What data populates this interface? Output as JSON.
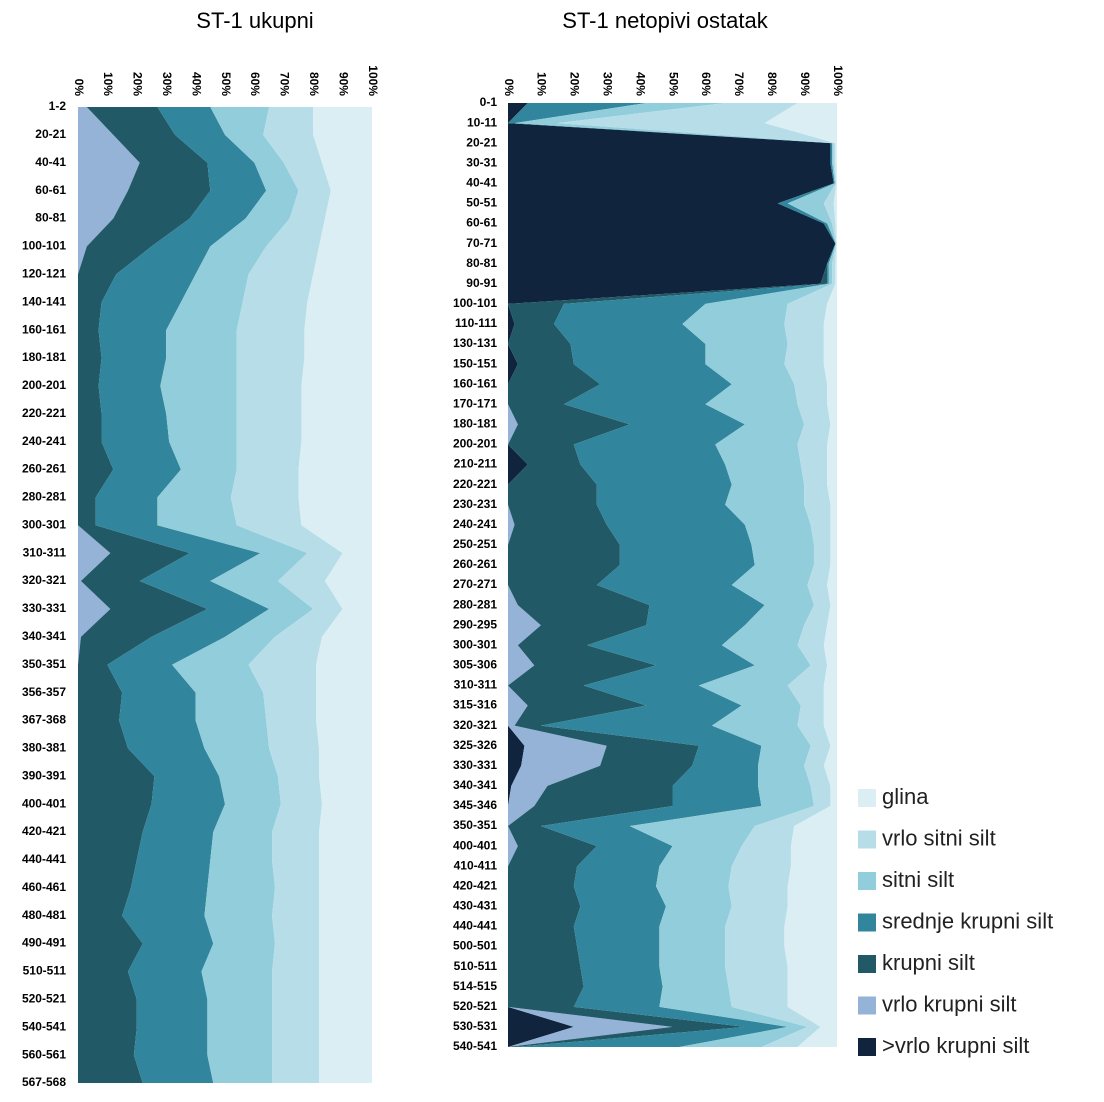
{
  "chart_data": [
    {
      "type": "stacked_area_horizontal",
      "title": "ST-1 ukupni",
      "categories": [
        "1-2",
        "20-21",
        "40-41",
        "60-61",
        "80-81",
        "100-101",
        "120-121",
        "140-141",
        "160-161",
        "180-181",
        "200-201",
        "220-221",
        "240-241",
        "260-261",
        "280-281",
        "300-301",
        "310-311",
        "320-321",
        "330-331",
        "340-341",
        "350-351",
        "356-357",
        "367-368",
        "380-381",
        "390-391",
        "400-401",
        "420-421",
        "440-441",
        "460-461",
        "480-481",
        "490-491",
        "510-511",
        "520-521",
        "540-541",
        "560-561",
        "567-568"
      ],
      "xlim": [
        0,
        100
      ],
      "xticks": [
        {
          "value": 0,
          "label": "0%"
        },
        {
          "value": 10,
          "label": "10%"
        },
        {
          "value": 20,
          "label": "20%"
        },
        {
          "value": 30,
          "label": "30%"
        },
        {
          "value": 40,
          "label": "40%"
        },
        {
          "value": 50,
          "label": "50%"
        },
        {
          "value": 60,
          "label": "60%"
        },
        {
          "value": 70,
          "label": "70%"
        },
        {
          "value": 80,
          "label": "80%"
        },
        {
          "value": 90,
          "label": "90%"
        },
        {
          "value": 100,
          "label": "100%"
        }
      ],
      "series": [
        {
          "color": "#95b3d7",
          "values": [
            3,
            12,
            21,
            17,
            12,
            3,
            0,
            0,
            0,
            0,
            0,
            0,
            0,
            0,
            0,
            0,
            11,
            1,
            11,
            1,
            0,
            0,
            0,
            0,
            0,
            0,
            0,
            0,
            0,
            0,
            0,
            0,
            0,
            0,
            0,
            0
          ]
        },
        {
          "color": "#215967",
          "values": [
            24,
            21,
            23,
            28,
            26,
            22,
            13,
            8,
            7,
            8,
            7,
            8,
            8,
            12,
            6,
            6,
            27,
            20,
            33,
            24,
            10,
            15,
            14,
            17,
            26,
            25,
            22,
            20,
            18,
            15,
            22,
            17,
            20,
            20,
            19,
            22
          ]
        },
        {
          "color": "#31859c",
          "values": [
            18,
            17,
            16,
            19,
            19,
            20,
            27,
            27,
            23,
            22,
            21,
            22,
            23,
            23,
            21,
            21,
            24,
            24,
            21,
            25,
            22,
            25,
            26,
            26,
            22,
            25,
            24,
            25,
            26,
            28,
            24,
            25,
            24,
            24,
            25,
            24
          ]
        },
        {
          "color": "#92cddc",
          "values": [
            20,
            13,
            10,
            11,
            15,
            19,
            18,
            21,
            24,
            24,
            26,
            24,
            23,
            19,
            25,
            27,
            16,
            23,
            15,
            17,
            26,
            23,
            24,
            22,
            20,
            19,
            20,
            21,
            23,
            23,
            21,
            24,
            22,
            22,
            22,
            20
          ]
        },
        {
          "color": "#b7dee8",
          "values": [
            15,
            17,
            13,
            11,
            12,
            18,
            22,
            22,
            23,
            23,
            22,
            22,
            22,
            21,
            23,
            22,
            12,
            16,
            10,
            16,
            23,
            18,
            17,
            17,
            14,
            14,
            16,
            16,
            15,
            16,
            15,
            16,
            16,
            16,
            16,
            16
          ]
        },
        {
          "color": "#daeef3",
          "values": [
            20,
            20,
            17,
            14,
            16,
            18,
            20,
            22,
            23,
            23,
            24,
            24,
            24,
            25,
            25,
            24,
            10,
            16,
            10,
            17,
            19,
            19,
            19,
            18,
            18,
            17,
            18,
            18,
            18,
            18,
            18,
            18,
            18,
            18,
            18,
            18
          ]
        }
      ]
    },
    {
      "type": "stacked_area_horizontal",
      "title": "ST-1 netopivi ostatak",
      "categories": [
        "0-1",
        "10-11",
        "20-21",
        "30-31",
        "40-41",
        "50-51",
        "60-61",
        "70-71",
        "80-81",
        "90-91",
        "100-101",
        "110-111",
        "130-131",
        "150-151",
        "160-161",
        "170-171",
        "180-181",
        "200-201",
        "210-211",
        "220-221",
        "230-231",
        "240-241",
        "250-251",
        "260-261",
        "270-271",
        "280-281",
        "290-295",
        "300-301",
        "305-306",
        "310-311",
        "315-316",
        "320-321",
        "325-326",
        "330-331",
        "340-341",
        "345-346",
        "350-351",
        "400-401",
        "410-411",
        "420-421",
        "430-431",
        "440-441",
        "500-501",
        "510-511",
        "514-515",
        "520-521",
        "530-531",
        "540-541"
      ],
      "xlim": [
        0,
        100
      ],
      "xticks": [
        {
          "value": 0,
          "label": "0%"
        },
        {
          "value": 10,
          "label": "10%"
        },
        {
          "value": 20,
          "label": "20%"
        },
        {
          "value": 30,
          "label": "30%"
        },
        {
          "value": 40,
          "label": "40%"
        },
        {
          "value": 50,
          "label": "50%"
        },
        {
          "value": 60,
          "label": "60%"
        },
        {
          "value": 70,
          "label": "70%"
        },
        {
          "value": 80,
          "label": "80%"
        },
        {
          "value": 90,
          "label": "90%"
        },
        {
          "value": 100,
          "label": "100%"
        }
      ],
      "series": [
        {
          "name": ">vrlo krupni silt",
          "color": "#10243e",
          "values": [
            6,
            0,
            98,
            98,
            99,
            82,
            96,
            99.5,
            97,
            95,
            0,
            2,
            0,
            3,
            0,
            0,
            0,
            0,
            6,
            0,
            0,
            0,
            0,
            0,
            0,
            0,
            0,
            0,
            0,
            0,
            0,
            0,
            5,
            4,
            1,
            0,
            0,
            0,
            0,
            0,
            0,
            0,
            0,
            0,
            0,
            0,
            20,
            0
          ]
        },
        {
          "name": "vrlo krupni silt",
          "color": "#95b3d7",
          "values": [
            0,
            0,
            0,
            0,
            0,
            0,
            0,
            0,
            0,
            0,
            0,
            0,
            0,
            0,
            0,
            0,
            3,
            0,
            0,
            0,
            0,
            2,
            0,
            0,
            0,
            3,
            10,
            3,
            8,
            0,
            6,
            2,
            25,
            24,
            11,
            8,
            0,
            3,
            0,
            0,
            0,
            0,
            0,
            0,
            0,
            0,
            30,
            0
          ]
        },
        {
          "name": "krupni silt",
          "color": "#215967",
          "values": [
            0,
            0,
            0,
            0,
            0,
            0,
            0,
            0,
            0,
            2,
            17,
            12,
            19,
            17,
            28,
            17,
            34,
            20,
            16,
            27,
            27,
            28,
            34,
            34,
            27,
            40,
            32,
            21,
            37,
            23,
            36,
            8,
            28,
            28,
            38,
            42,
            10,
            24,
            21,
            20,
            22,
            20,
            21,
            22,
            23,
            20,
            22,
            2
          ]
        },
        {
          "name": "srednje krupni silt",
          "color": "#31859c",
          "values": [
            36,
            2,
            0.5,
            0.5,
            0.3,
            3,
            1,
            0.1,
            0.5,
            0.5,
            43,
            39,
            41,
            40,
            40,
            43,
            35,
            43,
            44,
            41,
            39,
            42,
            40,
            41,
            41,
            35,
            30,
            41,
            30,
            35,
            29,
            52,
            19,
            20,
            26,
            27,
            27,
            23,
            25,
            25,
            26,
            26,
            25,
            24,
            24,
            26,
            13,
            50
          ]
        },
        {
          "name": "sitni silt",
          "color": "#92cddc",
          "values": [
            24,
            13,
            0.5,
            0.5,
            0.3,
            11,
            1.5,
            0.1,
            1,
            1,
            25,
            31,
            25,
            24,
            19,
            28,
            18,
            25,
            23,
            22,
            24,
            20,
            19,
            18,
            23,
            15,
            18,
            23,
            17,
            27,
            18,
            26,
            15,
            14,
            16,
            16,
            38,
            21,
            22,
            22,
            20,
            20,
            20,
            20,
            20,
            22,
            6,
            25
          ]
        },
        {
          "name": "vrlo sitni silt",
          "color": "#b7dee8",
          "values": [
            22,
            63,
            0.5,
            0.5,
            0.2,
            3,
            1,
            0.1,
            1,
            1,
            12,
            12,
            11,
            12,
            10,
            9,
            8,
            9,
            8,
            7,
            8,
            6,
            5,
            5,
            6,
            5,
            7,
            8,
            5,
            11,
            7,
            8,
            6,
            6,
            6,
            5,
            12,
            15,
            18,
            18,
            17,
            18,
            18,
            19,
            18,
            17,
            4,
            11
          ]
        },
        {
          "name": "glina",
          "color": "#daeef3",
          "values": [
            12,
            22,
            0.5,
            0.5,
            0.2,
            1,
            0.5,
            0.2,
            0.5,
            0.5,
            3,
            4,
            4,
            4,
            3,
            3,
            2,
            3,
            3,
            3,
            2,
            2,
            2,
            2,
            3,
            2,
            3,
            4,
            3,
            4,
            4,
            4,
            2,
            4,
            2,
            2,
            13,
            14,
            14,
            15,
            15,
            16,
            16,
            15,
            15,
            15,
            5,
            12
          ]
        }
      ]
    }
  ]
}
